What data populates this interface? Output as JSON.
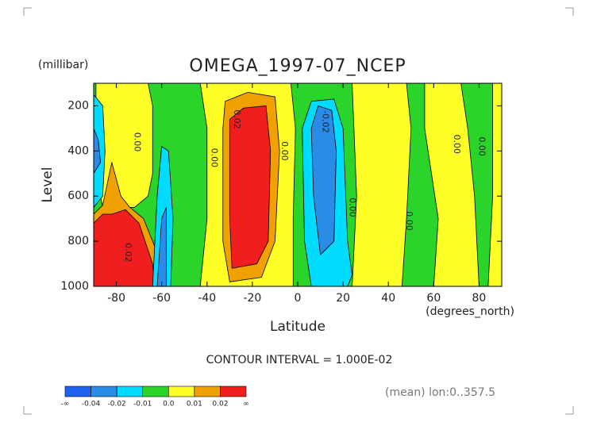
{
  "chart_data": {
    "type": "contour",
    "title": "OMEGA_1997-07_NCEP",
    "y_unit": "(millibar)",
    "y_label": "Level",
    "x_label": "Latitude",
    "x_unit": "(degrees_north)",
    "contour_interval": "CONTOUR INTERVAL = 1.000E-02",
    "note": "(mean) lon:0..357.5",
    "xlim": [
      -90,
      90
    ],
    "ylim": [
      1000,
      100
    ],
    "xticks": [
      -80,
      -60,
      -40,
      -20,
      0,
      20,
      40,
      60,
      80
    ],
    "yticks": [
      200,
      400,
      600,
      800,
      1000
    ],
    "background": "#2ad42a",
    "regions": [
      {
        "color": "#ffff28",
        "points": [
          [
            -89,
            100
          ],
          [
            -66,
            100
          ],
          [
            -64,
            200
          ],
          [
            -64,
            500
          ],
          [
            -66,
            600
          ],
          [
            -72,
            650
          ],
          [
            -86,
            650
          ],
          [
            -89,
            500
          ]
        ]
      },
      {
        "color": "#00dcff",
        "points": [
          [
            -90,
            150
          ],
          [
            -86,
            200
          ],
          [
            -85,
            400
          ],
          [
            -86,
            600
          ],
          [
            -90,
            650
          ]
        ]
      },
      {
        "color": "#2a8ce6",
        "points": [
          [
            -90,
            300
          ],
          [
            -88,
            350
          ],
          [
            -87,
            450
          ],
          [
            -90,
            500
          ]
        ]
      },
      {
        "color": "#f0a000",
        "points": [
          [
            -90,
            680
          ],
          [
            -86,
            640
          ],
          [
            -82,
            450
          ],
          [
            -78,
            600
          ],
          [
            -74,
            650
          ],
          [
            -68,
            700
          ],
          [
            -62,
            850
          ],
          [
            -60,
            1000
          ],
          [
            -90,
            1000
          ]
        ]
      },
      {
        "color": "#f01e1e",
        "points": [
          [
            -90,
            720
          ],
          [
            -86,
            680
          ],
          [
            -82,
            680
          ],
          [
            -76,
            660
          ],
          [
            -70,
            720
          ],
          [
            -64,
            900
          ],
          [
            -63,
            1000
          ],
          [
            -90,
            1000
          ]
        ]
      },
      {
        "color": "#00dcff",
        "points": [
          [
            -64,
            1000
          ],
          [
            -62,
            600
          ],
          [
            -60,
            380
          ],
          [
            -57,
            400
          ],
          [
            -55,
            700
          ],
          [
            -56,
            1000
          ]
        ]
      },
      {
        "color": "#2a8ce6",
        "points": [
          [
            -62,
            1000
          ],
          [
            -60,
            700
          ],
          [
            -58,
            650
          ],
          [
            -58,
            1000
          ]
        ]
      },
      {
        "color": "#ffff28",
        "points": [
          [
            -43,
            100
          ],
          [
            -3,
            100
          ],
          [
            -1,
            300
          ],
          [
            -2,
            700
          ],
          [
            -2,
            1000
          ],
          [
            -43,
            1000
          ],
          [
            -40,
            700
          ],
          [
            -40,
            300
          ]
        ]
      },
      {
        "color": "#f0a000",
        "points": [
          [
            -32,
            180
          ],
          [
            -22,
            140
          ],
          [
            -10,
            160
          ],
          [
            -8,
            400
          ],
          [
            -10,
            800
          ],
          [
            -16,
            960
          ],
          [
            -30,
            980
          ],
          [
            -33,
            800
          ],
          [
            -33,
            300
          ]
        ]
      },
      {
        "color": "#f01e1e",
        "points": [
          [
            -30,
            260
          ],
          [
            -24,
            210
          ],
          [
            -14,
            200
          ],
          [
            -12,
            400
          ],
          [
            -13,
            800
          ],
          [
            -18,
            900
          ],
          [
            -29,
            920
          ],
          [
            -30,
            700
          ]
        ]
      },
      {
        "color": "#00dcff",
        "points": [
          [
            2,
            300
          ],
          [
            6,
            180
          ],
          [
            16,
            170
          ],
          [
            20,
            300
          ],
          [
            22,
            800
          ],
          [
            24,
            950
          ],
          [
            22,
            1000
          ],
          [
            6,
            1000
          ],
          [
            3,
            800
          ]
        ]
      },
      {
        "color": "#2a8ce6",
        "points": [
          [
            6,
            300
          ],
          [
            9,
            200
          ],
          [
            15,
            220
          ],
          [
            17,
            400
          ],
          [
            16,
            800
          ],
          [
            10,
            860
          ],
          [
            7,
            600
          ]
        ]
      },
      {
        "color": "#ffff28",
        "points": [
          [
            24,
            100
          ],
          [
            48,
            100
          ],
          [
            50,
            300
          ],
          [
            48,
            700
          ],
          [
            46,
            1000
          ],
          [
            24,
            1000
          ],
          [
            26,
            600
          ]
        ]
      },
      {
        "color": "#ffff28",
        "points": [
          [
            56,
            100
          ],
          [
            72,
            100
          ],
          [
            75,
            300
          ],
          [
            78,
            600
          ],
          [
            80,
            1000
          ],
          [
            60,
            1000
          ],
          [
            62,
            700
          ],
          [
            56,
            300
          ]
        ]
      },
      {
        "color": "#ffff28",
        "points": [
          [
            86,
            100
          ],
          [
            90,
            100
          ],
          [
            90,
            1000
          ],
          [
            84,
            1000
          ],
          [
            86,
            600
          ]
        ]
      }
    ],
    "contour_labels": [
      {
        "text": "0.00",
        "x": -71,
        "y": 360
      },
      {
        "text": "0.02",
        "x": -27,
        "y": 260
      },
      {
        "text": "0.00",
        "x": -37,
        "y": 430
      },
      {
        "text": "0.00",
        "x": -6,
        "y": 400
      },
      {
        "text": "-0.02",
        "x": 12,
        "y": 270
      },
      {
        "text": "0.00",
        "x": 24,
        "y": 650
      },
      {
        "text": "0.00",
        "x": 49,
        "y": 710
      },
      {
        "text": "0.00",
        "x": 70,
        "y": 370
      },
      {
        "text": "0.00",
        "x": 81,
        "y": 380
      },
      {
        "text": "0.02",
        "x": -75,
        "y": 850
      }
    ],
    "colorbar": {
      "colors": [
        "#1e64f0",
        "#2a8ce6",
        "#00dcff",
        "#2ad42a",
        "#ffff28",
        "#f0a000",
        "#f01e1e"
      ],
      "labels": [
        "-∞",
        "-0.04",
        "-0.02",
        "-0.01",
        "0.0",
        "0.01",
        "0.02",
        "∞"
      ]
    }
  }
}
